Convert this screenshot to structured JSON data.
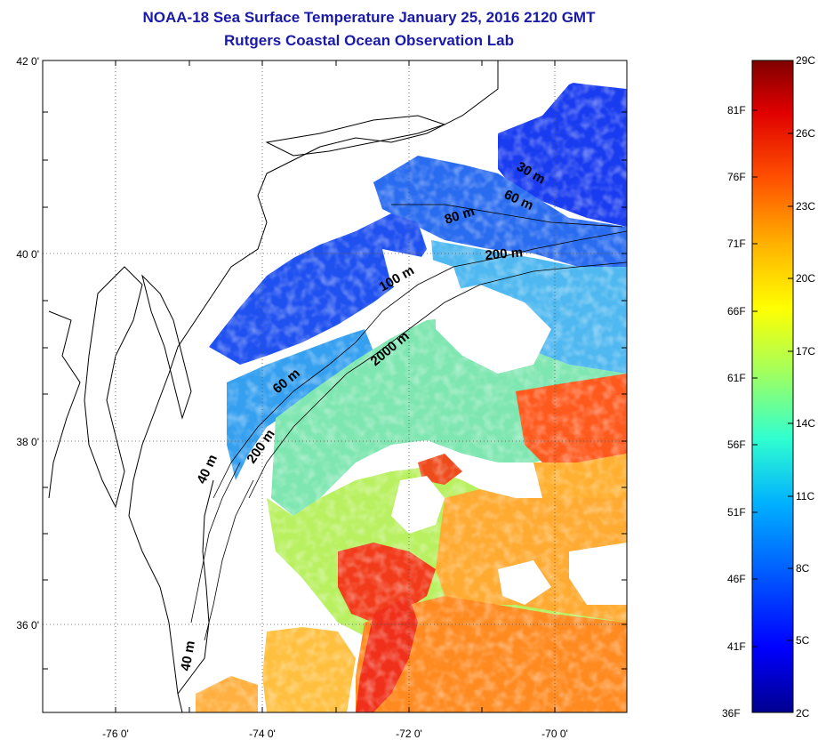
{
  "title": {
    "line1": "NOAA-18 Sea Surface Temperature January 25, 2016 2120 GMT",
    "line2": "Rutgers Coastal Ocean Observation Lab"
  },
  "map": {
    "lat_labels": [
      "42 0'",
      "40 0'",
      "38 0'",
      "36 0'"
    ],
    "lon_labels": [
      "-76 0'",
      "-74 0'",
      "-72 0'",
      "-70 0'"
    ],
    "lat_range": [
      35.0,
      42.0
    ],
    "lon_range": [
      -77.0,
      -69.0
    ],
    "contour_labels": [
      "30 m",
      "60 m",
      "80 m",
      "200 m",
      "100 m",
      "2000 m",
      "60 m",
      "200 m",
      "40 m",
      "40 m"
    ]
  },
  "colorbar": {
    "celsius_labels": [
      "29C",
      "26C",
      "23C",
      "20C",
      "17C",
      "14C",
      "11C",
      "8C",
      "5C",
      "2C"
    ],
    "fahrenheit_labels": [
      "81F",
      "76F",
      "71F",
      "66F",
      "61F",
      "56F",
      "51F",
      "46F",
      "41F",
      "36F"
    ],
    "range_c": [
      2,
      29
    ],
    "colors": [
      "#00008f",
      "#0000ff",
      "#0050ff",
      "#00b0ff",
      "#30ffd0",
      "#a0ff60",
      "#ffff00",
      "#ffb000",
      "#ff5000",
      "#e00000",
      "#800000"
    ]
  }
}
